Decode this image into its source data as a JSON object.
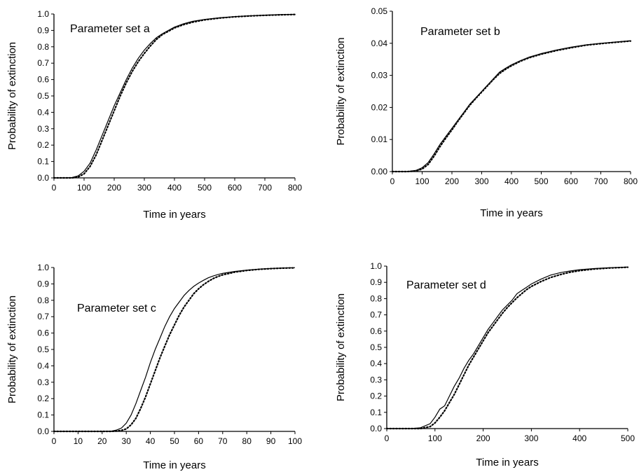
{
  "chart_data": [
    {
      "type": "line",
      "annotation": "Parameter set a",
      "xlabel": "Time in years",
      "ylabel": "Probability of extinction",
      "xlim": [
        0,
        800
      ],
      "ylim": [
        0,
        1.0
      ],
      "xticks": [
        "0",
        "100",
        "200",
        "300",
        "400",
        "500",
        "600",
        "700",
        "800"
      ],
      "yticks": [
        "0.0",
        "0.1",
        "0.2",
        "0.3",
        "0.4",
        "0.5",
        "0.6",
        "0.7",
        "0.8",
        "0.9",
        "1.0"
      ],
      "grid": false,
      "series": [
        {
          "style": "solid",
          "x": [
            0,
            40,
            60,
            80,
            100,
            120,
            140,
            160,
            180,
            200,
            220,
            240,
            260,
            280,
            300,
            320,
            340,
            360,
            380,
            400,
            430,
            460,
            500,
            550,
            600,
            650,
            700,
            750,
            800
          ],
          "y": [
            0,
            0,
            0.002,
            0.012,
            0.04,
            0.09,
            0.17,
            0.26,
            0.35,
            0.44,
            0.52,
            0.6,
            0.67,
            0.73,
            0.78,
            0.82,
            0.855,
            0.88,
            0.9,
            0.92,
            0.94,
            0.955,
            0.967,
            0.977,
            0.984,
            0.989,
            0.993,
            0.996,
            0.998
          ]
        },
        {
          "style": "dotted",
          "x": [
            0,
            40,
            60,
            80,
            100,
            120,
            140,
            160,
            180,
            200,
            220,
            240,
            260,
            280,
            300,
            320,
            340,
            360,
            380,
            400,
            430,
            460,
            500,
            550,
            600,
            650,
            700,
            750,
            800
          ],
          "y": [
            0,
            0,
            0,
            0.005,
            0.025,
            0.07,
            0.14,
            0.23,
            0.32,
            0.41,
            0.5,
            0.58,
            0.65,
            0.71,
            0.76,
            0.805,
            0.845,
            0.875,
            0.895,
            0.915,
            0.935,
            0.95,
            0.964,
            0.975,
            0.983,
            0.988,
            0.992,
            0.995,
            0.997
          ]
        }
      ]
    },
    {
      "type": "line",
      "annotation": "Parameter set b",
      "xlabel": "Time in years",
      "ylabel": "Probability of extinction",
      "xlim": [
        0,
        800
      ],
      "ylim": [
        0,
        0.05
      ],
      "xticks": [
        "0",
        "100",
        "200",
        "300",
        "400",
        "500",
        "600",
        "700",
        "800"
      ],
      "yticks": [
        "0.00",
        "0.01",
        "0.02",
        "0.03",
        "0.04",
        "0.05"
      ],
      "grid": false,
      "series": [
        {
          "style": "solid",
          "x": [
            0,
            50,
            80,
            100,
            120,
            140,
            160,
            180,
            200,
            220,
            240,
            260,
            280,
            300,
            320,
            340,
            360,
            380,
            400,
            430,
            460,
            500,
            550,
            600,
            650,
            700,
            750,
            800
          ],
          "y": [
            0,
            0,
            0.0004,
            0.0012,
            0.0028,
            0.0055,
            0.0085,
            0.011,
            0.0135,
            0.016,
            0.0185,
            0.021,
            0.023,
            0.025,
            0.027,
            0.029,
            0.031,
            0.0322,
            0.0333,
            0.0346,
            0.0357,
            0.0368,
            0.0379,
            0.0388,
            0.0395,
            0.04,
            0.0404,
            0.0408
          ]
        },
        {
          "style": "dotted",
          "x": [
            0,
            50,
            80,
            100,
            120,
            140,
            160,
            180,
            200,
            220,
            240,
            260,
            280,
            300,
            320,
            340,
            360,
            380,
            400,
            430,
            460,
            500,
            550,
            600,
            650,
            700,
            750,
            800
          ],
          "y": [
            0,
            0,
            0.0002,
            0.0008,
            0.0022,
            0.0048,
            0.0078,
            0.0105,
            0.013,
            0.0157,
            0.0182,
            0.0207,
            0.0228,
            0.0248,
            0.0268,
            0.0288,
            0.0306,
            0.0319,
            0.033,
            0.0344,
            0.0355,
            0.0366,
            0.0377,
            0.0386,
            0.0394,
            0.0399,
            0.0403,
            0.0407
          ]
        }
      ]
    },
    {
      "type": "line",
      "annotation": "Parameter set c",
      "xlabel": "Time in years",
      "ylabel": "Probability of extinction",
      "xlim": [
        0,
        100
      ],
      "ylim": [
        0,
        1.0
      ],
      "xticks": [
        "0",
        "10",
        "20",
        "30",
        "40",
        "50",
        "60",
        "70",
        "80",
        "90",
        "100"
      ],
      "yticks": [
        "0.0",
        "0.1",
        "0.2",
        "0.3",
        "0.4",
        "0.5",
        "0.6",
        "0.7",
        "0.8",
        "0.9",
        "1.0"
      ],
      "grid": false,
      "series": [
        {
          "style": "solid",
          "x": [
            0,
            20,
            24,
            26,
            28,
            30,
            32,
            34,
            36,
            38,
            40,
            42,
            44,
            46,
            48,
            50,
            52,
            54,
            56,
            58,
            60,
            62,
            64,
            66,
            68,
            70,
            75,
            80,
            85,
            90,
            95,
            100
          ],
          "y": [
            0,
            0,
            0.002,
            0.008,
            0.02,
            0.05,
            0.1,
            0.17,
            0.25,
            0.33,
            0.42,
            0.5,
            0.57,
            0.64,
            0.7,
            0.75,
            0.79,
            0.83,
            0.86,
            0.885,
            0.905,
            0.922,
            0.937,
            0.948,
            0.957,
            0.964,
            0.976,
            0.984,
            0.99,
            0.994,
            0.997,
            0.999
          ]
        },
        {
          "style": "dotted",
          "x": [
            0,
            20,
            24,
            26,
            28,
            30,
            32,
            34,
            36,
            38,
            40,
            42,
            44,
            46,
            48,
            50,
            52,
            54,
            56,
            58,
            60,
            62,
            64,
            66,
            68,
            70,
            75,
            80,
            85,
            90,
            95,
            100
          ],
          "y": [
            0,
            0,
            0,
            0.002,
            0.006,
            0.015,
            0.04,
            0.08,
            0.14,
            0.21,
            0.29,
            0.37,
            0.45,
            0.52,
            0.59,
            0.65,
            0.71,
            0.76,
            0.8,
            0.84,
            0.87,
            0.895,
            0.915,
            0.932,
            0.945,
            0.955,
            0.972,
            0.982,
            0.989,
            0.993,
            0.996,
            0.998
          ]
        }
      ]
    },
    {
      "type": "line",
      "annotation": "Parameter set d",
      "xlabel": "Time in years",
      "ylabel": "Probability of extinction",
      "xlim": [
        0,
        500
      ],
      "ylim": [
        0,
        1.0
      ],
      "xticks": [
        "0",
        "100",
        "200",
        "300",
        "400",
        "500"
      ],
      "yticks": [
        "0.0",
        "0.1",
        "0.2",
        "0.3",
        "0.4",
        "0.5",
        "0.6",
        "0.7",
        "0.8",
        "0.9",
        "1.0"
      ],
      "grid": false,
      "series": [
        {
          "style": "solid",
          "x": [
            0,
            50,
            70,
            90,
            100,
            110,
            120,
            130,
            140,
            150,
            160,
            170,
            180,
            190,
            200,
            210,
            220,
            230,
            240,
            250,
            260,
            270,
            280,
            290,
            300,
            320,
            340,
            360,
            380,
            400,
            430,
            460,
            500
          ],
          "y": [
            0,
            0,
            0.005,
            0.03,
            0.07,
            0.12,
            0.14,
            0.2,
            0.26,
            0.31,
            0.37,
            0.42,
            0.46,
            0.51,
            0.56,
            0.61,
            0.65,
            0.69,
            0.73,
            0.76,
            0.79,
            0.83,
            0.85,
            0.87,
            0.89,
            0.92,
            0.945,
            0.96,
            0.97,
            0.978,
            0.985,
            0.99,
            0.994
          ]
        },
        {
          "style": "dotted",
          "x": [
            0,
            50,
            70,
            90,
            100,
            110,
            120,
            130,
            140,
            150,
            160,
            170,
            180,
            190,
            200,
            210,
            220,
            230,
            240,
            250,
            260,
            270,
            280,
            290,
            300,
            320,
            340,
            360,
            380,
            400,
            430,
            460,
            500
          ],
          "y": [
            0,
            0,
            0,
            0.012,
            0.035,
            0.07,
            0.11,
            0.16,
            0.21,
            0.27,
            0.33,
            0.39,
            0.44,
            0.49,
            0.54,
            0.59,
            0.63,
            0.67,
            0.71,
            0.745,
            0.775,
            0.805,
            0.83,
            0.855,
            0.875,
            0.905,
            0.93,
            0.948,
            0.962,
            0.972,
            0.982,
            0.988,
            0.993
          ]
        }
      ]
    }
  ]
}
